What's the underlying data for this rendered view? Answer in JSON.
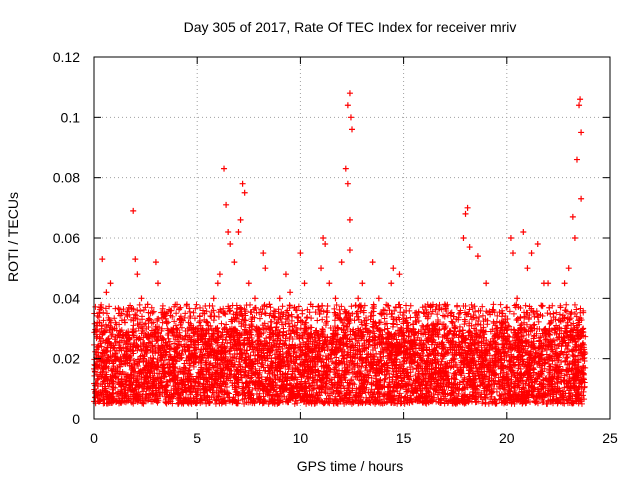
{
  "chart_data": {
    "type": "scatter",
    "title": "Day 305 of 2017, Rate Of TEC Index for receiver mriv",
    "xlabel": "GPS time / hours",
    "ylabel": "ROTI / TECUs",
    "xlim": [
      0,
      25
    ],
    "ylim": [
      0,
      0.12
    ],
    "xticks": [
      0,
      5,
      10,
      15,
      20,
      25
    ],
    "xtick_labels": [
      "0",
      "5",
      "10",
      "15",
      "20",
      "25"
    ],
    "yticks": [
      0,
      0.02,
      0.04,
      0.06,
      0.08,
      0.1,
      0.12
    ],
    "ytick_labels": [
      "0",
      "0.02",
      "0.04",
      "0.06",
      "0.08",
      "0.1",
      "0.12"
    ],
    "grid": true,
    "marker": "plus",
    "point_color": "#ff0000",
    "data_range": {
      "x": [
        0,
        23.8
      ],
      "y_typical": [
        0.005,
        0.03
      ]
    },
    "series": [
      {
        "name": "ROTI",
        "points": [
          [
            0.2,
            0.022
          ],
          [
            0.4,
            0.053
          ],
          [
            0.6,
            0.042
          ],
          [
            0.8,
            0.045
          ],
          [
            1.0,
            0.03
          ],
          [
            1.2,
            0.035
          ],
          [
            1.5,
            0.032
          ],
          [
            1.9,
            0.069
          ],
          [
            2.0,
            0.053
          ],
          [
            2.1,
            0.048
          ],
          [
            2.3,
            0.04
          ],
          [
            2.6,
            0.038
          ],
          [
            3.0,
            0.052
          ],
          [
            3.1,
            0.045
          ],
          [
            3.5,
            0.035
          ],
          [
            4.0,
            0.03
          ],
          [
            4.5,
            0.038
          ],
          [
            5.0,
            0.03
          ],
          [
            5.5,
            0.032
          ],
          [
            5.8,
            0.04
          ],
          [
            6.0,
            0.045
          ],
          [
            6.1,
            0.048
          ],
          [
            6.3,
            0.083
          ],
          [
            6.4,
            0.071
          ],
          [
            6.5,
            0.062
          ],
          [
            6.6,
            0.058
          ],
          [
            6.8,
            0.052
          ],
          [
            7.0,
            0.062
          ],
          [
            7.1,
            0.066
          ],
          [
            7.2,
            0.078
          ],
          [
            7.3,
            0.075
          ],
          [
            7.5,
            0.045
          ],
          [
            7.8,
            0.04
          ],
          [
            8.2,
            0.055
          ],
          [
            8.3,
            0.05
          ],
          [
            8.5,
            0.038
          ],
          [
            9.0,
            0.04
          ],
          [
            9.3,
            0.048
          ],
          [
            9.5,
            0.042
          ],
          [
            10.0,
            0.055
          ],
          [
            10.2,
            0.045
          ],
          [
            10.5,
            0.038
          ],
          [
            11.0,
            0.05
          ],
          [
            11.1,
            0.06
          ],
          [
            11.2,
            0.058
          ],
          [
            11.4,
            0.045
          ],
          [
            11.7,
            0.04
          ],
          [
            12.0,
            0.052
          ],
          [
            12.2,
            0.083
          ],
          [
            12.3,
            0.104
          ],
          [
            12.4,
            0.108
          ],
          [
            12.45,
            0.1
          ],
          [
            12.5,
            0.096
          ],
          [
            12.3,
            0.078
          ],
          [
            12.4,
            0.066
          ],
          [
            12.4,
            0.056
          ],
          [
            12.8,
            0.04
          ],
          [
            13.0,
            0.045
          ],
          [
            13.5,
            0.052
          ],
          [
            13.8,
            0.04
          ],
          [
            14.0,
            0.035
          ],
          [
            14.4,
            0.045
          ],
          [
            14.5,
            0.05
          ],
          [
            14.8,
            0.048
          ],
          [
            15.2,
            0.03
          ],
          [
            15.5,
            0.028
          ],
          [
            16.0,
            0.035
          ],
          [
            16.5,
            0.03
          ],
          [
            17.0,
            0.038
          ],
          [
            17.5,
            0.03
          ],
          [
            17.9,
            0.06
          ],
          [
            18.0,
            0.068
          ],
          [
            18.1,
            0.07
          ],
          [
            18.2,
            0.057
          ],
          [
            18.6,
            0.054
          ],
          [
            19.0,
            0.045
          ],
          [
            19.5,
            0.03
          ],
          [
            19.8,
            0.035
          ],
          [
            20.2,
            0.06
          ],
          [
            20.3,
            0.055
          ],
          [
            20.5,
            0.04
          ],
          [
            20.8,
            0.062
          ],
          [
            21.0,
            0.05
          ],
          [
            21.2,
            0.055
          ],
          [
            21.5,
            0.058
          ],
          [
            21.8,
            0.045
          ],
          [
            22.0,
            0.045
          ],
          [
            22.3,
            0.03
          ],
          [
            22.8,
            0.045
          ],
          [
            23.0,
            0.05
          ],
          [
            23.2,
            0.067
          ],
          [
            23.3,
            0.06
          ],
          [
            23.4,
            0.086
          ],
          [
            23.5,
            0.104
          ],
          [
            23.55,
            0.106
          ],
          [
            23.6,
            0.095
          ],
          [
            23.6,
            0.073
          ],
          [
            23.7,
            0.03
          ],
          [
            23.7,
            0.02
          ]
        ]
      }
    ]
  }
}
